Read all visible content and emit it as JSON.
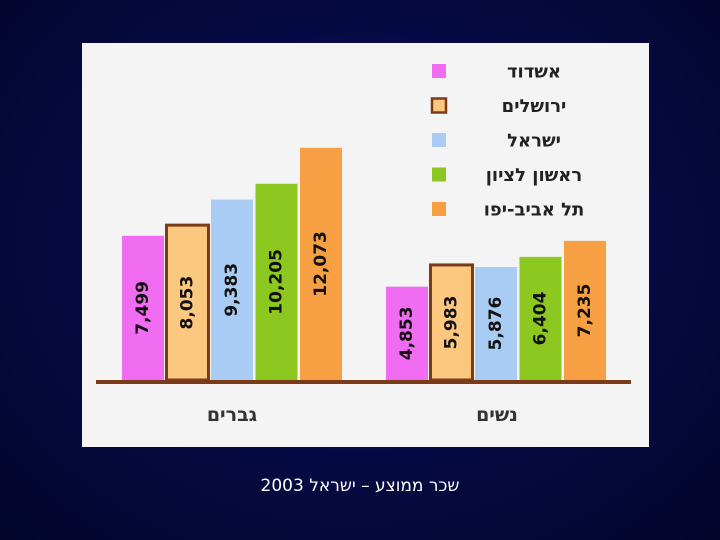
{
  "caption": "שכר ממוצע – ישראל 2003",
  "chart_data": {
    "type": "bar",
    "categories": [
      "גברים",
      "נשים"
    ],
    "series": [
      {
        "name": "אשדוד",
        "color": "#f06cf0",
        "values": [
          7499,
          4853
        ],
        "labels": [
          "7,499",
          "4,853"
        ]
      },
      {
        "name": "ירושלים",
        "color": "#fcc880",
        "border": "#7a3b18",
        "values": [
          8053,
          5983
        ],
        "labels": [
          "8,053",
          "5,983"
        ]
      },
      {
        "name": "ישראל",
        "color": "#a9ccf4",
        "values": [
          9383,
          5876
        ],
        "labels": [
          "9,383",
          "5,876"
        ]
      },
      {
        "name": "ראשון לציון",
        "color": "#8cc820",
        "values": [
          10205,
          6404
        ],
        "labels": [
          "10,205",
          "6,404"
        ]
      },
      {
        "name": "תל אביב-יפו",
        "color": "#f7a043",
        "values": [
          12073,
          7235
        ],
        "labels": [
          "12,073",
          "7,235"
        ]
      }
    ],
    "ylim": [
      0,
      13000
    ],
    "legend_position": "top-right",
    "grid": false
  }
}
